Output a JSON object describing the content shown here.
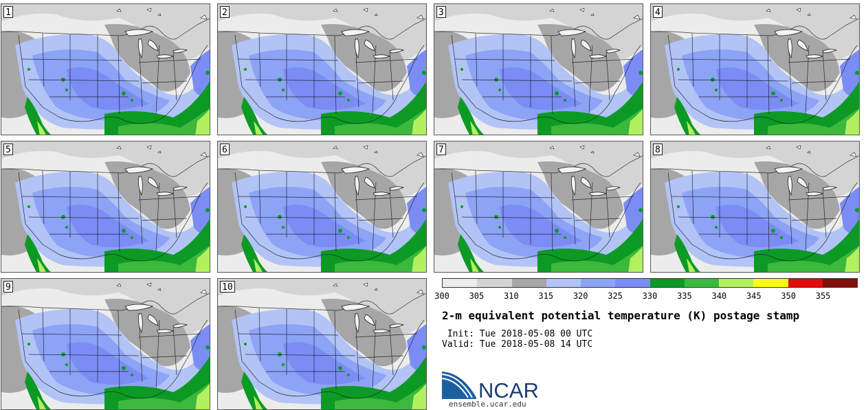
{
  "panels": [
    {
      "label": "1"
    },
    {
      "label": "2"
    },
    {
      "label": "3"
    },
    {
      "label": "4"
    },
    {
      "label": "5"
    },
    {
      "label": "6"
    },
    {
      "label": "7"
    },
    {
      "label": "8"
    },
    {
      "label": "9"
    },
    {
      "label": "10"
    }
  ],
  "colorbar": {
    "colors": [
      "#ececec",
      "#d4d4d4",
      "#a6a6a6",
      "#b2c3f6",
      "#8ca3f6",
      "#7b8df4",
      "#0c9a25",
      "#3cb83c",
      "#b2f060",
      "#fcfc12",
      "#e40a0a",
      "#820f0a"
    ],
    "ticks": [
      "300",
      "305",
      "310",
      "315",
      "320",
      "325",
      "330",
      "335",
      "340",
      "345",
      "350",
      "355"
    ]
  },
  "title": "2-m equivalent potential temperature (K) postage stamp",
  "init_line": " Init: Tue 2018-05-08 00 UTC",
  "valid_line": "Valid: Tue 2018-05-08 14 UTC",
  "logo_text": "NCAR",
  "url": "ensemble.ucar.edu"
}
